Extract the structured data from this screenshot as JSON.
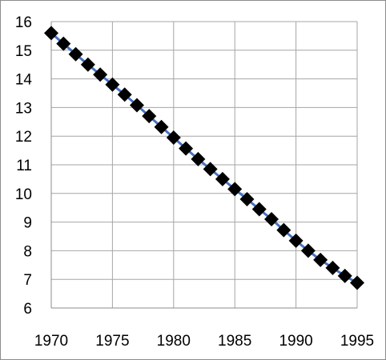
{
  "chart_data": {
    "type": "line",
    "title": "",
    "xlabel": "",
    "ylabel": "",
    "xlim": [
      1970,
      1995
    ],
    "ylim": [
      6,
      16
    ],
    "x_ticks": [
      "1970",
      "1975",
      "1980",
      "1985",
      "1990",
      "1995"
    ],
    "y_ticks": [
      "6",
      "7",
      "8",
      "9",
      "10",
      "11",
      "12",
      "13",
      "14",
      "15",
      "16"
    ],
    "grid": true,
    "legend": "none",
    "series": [
      {
        "line_color": "#4472c4",
        "marker": "diamond",
        "marker_color": "#000000",
        "x": [
          1970,
          1971,
          1972,
          1973,
          1974,
          1975,
          1976,
          1977,
          1978,
          1979,
          1980,
          1981,
          1982,
          1983,
          1984,
          1985,
          1986,
          1987,
          1988,
          1989,
          1990,
          1991,
          1992,
          1993,
          1994,
          1995
        ],
        "y": [
          15.6,
          15.23,
          14.86,
          14.5,
          14.15,
          13.8,
          13.45,
          13.08,
          12.7,
          12.32,
          11.95,
          11.57,
          11.2,
          10.85,
          10.5,
          10.15,
          9.8,
          9.45,
          9.1,
          8.72,
          8.35,
          8.0,
          7.68,
          7.4,
          7.12,
          6.88
        ]
      }
    ]
  }
}
